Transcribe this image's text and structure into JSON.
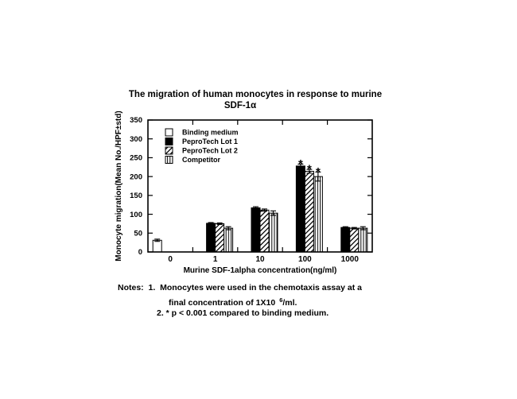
{
  "page": {
    "background": "#ffffff",
    "foreground": "#000000"
  },
  "title": {
    "line1": "The migration of human monocytes in response to murine",
    "line2": "SDF-1α"
  },
  "chart_data": {
    "type": "bar",
    "title": "The migration of human monocytes in response to murine SDF-1α",
    "xlabel": "Murine SDF-1alpha concentration(ng/ml)",
    "ylabel": "Monocyte migration(Mean No./HPF±std)",
    "ylim": [
      0,
      350
    ],
    "yticks": [
      0,
      50,
      100,
      150,
      200,
      250,
      300,
      350
    ],
    "categories": [
      "0",
      "1",
      "10",
      "100",
      "1000"
    ],
    "grid": false,
    "legend_position": "inside-top-left",
    "series": [
      {
        "name": "Binding medium",
        "pattern": "open",
        "values": [
          31,
          null,
          null,
          null,
          null
        ],
        "errors": [
          3,
          null,
          null,
          null,
          null
        ]
      },
      {
        "name": "PeproTech Lot 1",
        "pattern": "solid",
        "values": [
          null,
          76,
          117,
          228,
          65
        ],
        "errors": [
          null,
          2,
          3,
          5,
          2
        ]
      },
      {
        "name": "PeproTech Lot 2",
        "pattern": "diagonal-hatch",
        "values": [
          null,
          75,
          111,
          214,
          63
        ],
        "errors": [
          null,
          2,
          3,
          5,
          2
        ]
      },
      {
        "name": "Competitor",
        "pattern": "vertical-hatch",
        "values": [
          null,
          63,
          103,
          200,
          63
        ],
        "errors": [
          null,
          4,
          6,
          12,
          4
        ]
      }
    ],
    "significance_markers": [
      {
        "symbol": "*",
        "category": "100",
        "series": "PeproTech Lot 1"
      },
      {
        "symbol": "*",
        "category": "100",
        "series": "PeproTech Lot 2"
      },
      {
        "symbol": "*",
        "category": "100",
        "series": "Competitor"
      }
    ]
  },
  "notes": {
    "line1": "Notes:  1.  Monocytes were used in the chemotaxis assay at a",
    "line2_prefix": "final concentration of 1X10",
    "line2_sup": "6",
    "line2_suffix": "/ml.",
    "line3": "2. * p < 0.001 compared to binding medium."
  }
}
